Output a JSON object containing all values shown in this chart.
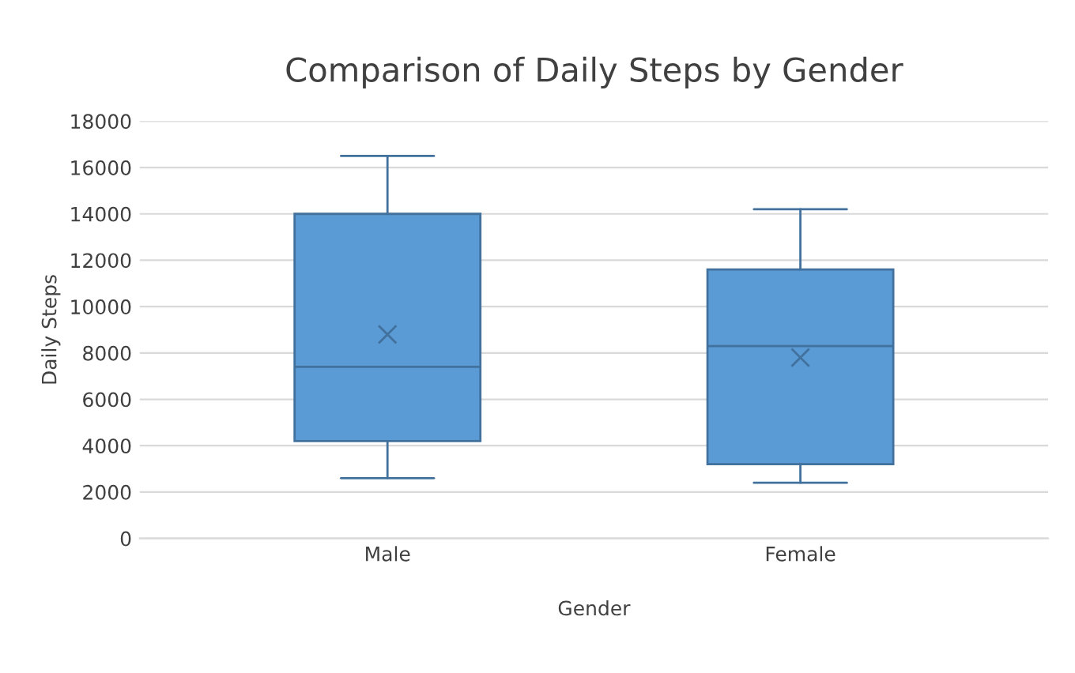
{
  "chart_data": {
    "type": "box",
    "title": "Comparison of Daily Steps by Gender",
    "xlabel": "Gender",
    "ylabel": "Daily Steps",
    "categories": [
      "Male",
      "Female"
    ],
    "boxes": [
      {
        "low": 2600,
        "q1": 4200,
        "median": 7400,
        "q3": 14000,
        "high": 16500,
        "mean": 8800
      },
      {
        "low": 2400,
        "q1": 3200,
        "median": 8300,
        "q3": 11600,
        "high": 14200,
        "mean": 7800
      }
    ],
    "color": "#5b9bd5",
    "ylim": [
      0,
      18000
    ],
    "yticks": [
      0,
      2000,
      4000,
      6000,
      8000,
      10000,
      12000,
      14000,
      16000,
      18000
    ],
    "grid": "y"
  }
}
